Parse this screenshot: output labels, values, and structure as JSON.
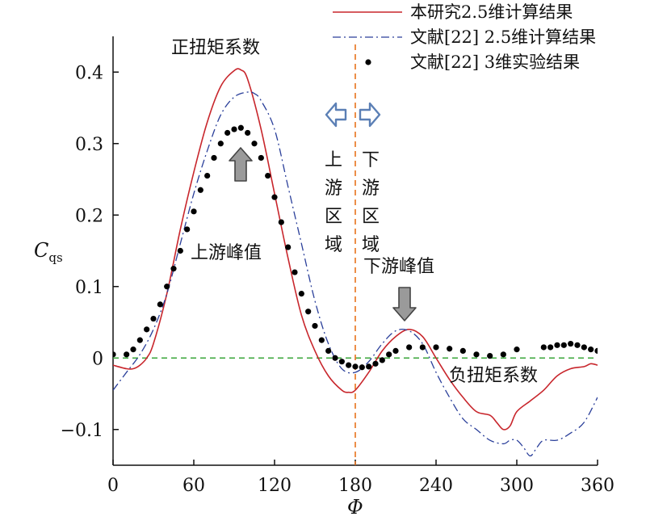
{
  "chart_data": {
    "type": "line",
    "xlabel": "Φ",
    "ylabel": "C",
    "ylabel_sub": "qs",
    "xlim": [
      0,
      360
    ],
    "ylim": [
      -0.15,
      0.45
    ],
    "xticks": [
      0,
      60,
      120,
      180,
      240,
      300,
      360
    ],
    "yticks": [
      -0.1,
      0,
      0.1,
      0.2,
      0.3,
      0.4
    ],
    "xtick_labels": [
      "0",
      "60",
      "120",
      "180",
      "240",
      "300",
      "360"
    ],
    "ytick_labels": [
      "−0.1",
      "0",
      "0.1",
      "0.2",
      "0.3",
      "0.4"
    ],
    "grid": false,
    "legend_position": "top-right",
    "colors": {
      "red": "#c8262c",
      "blue": "#2a3f9a",
      "dots": "#000000",
      "zero": "#3aa63a",
      "divider": "#e8731c",
      "arrow_blue": "#5b7fb5",
      "arrow_gray": "#9a9a9a"
    },
    "series": [
      {
        "name": "本研究2.5维计算结果",
        "style": "solid-red",
        "x": [
          0,
          10,
          15,
          20,
          25,
          30,
          40,
          50,
          60,
          70,
          80,
          90,
          95,
          100,
          110,
          120,
          130,
          140,
          150,
          160,
          170,
          175,
          180,
          190,
          200,
          210,
          220,
          230,
          240,
          250,
          260,
          270,
          280,
          285,
          290,
          295,
          300,
          310,
          320,
          330,
          340,
          350,
          355,
          360
        ],
        "y": [
          -0.01,
          -0.015,
          -0.015,
          -0.01,
          0.0,
          0.02,
          0.09,
          0.18,
          0.26,
          0.33,
          0.38,
          0.402,
          0.403,
          0.39,
          0.32,
          0.23,
          0.14,
          0.06,
          0.01,
          -0.025,
          -0.045,
          -0.048,
          -0.045,
          -0.02,
          0.01,
          0.03,
          0.04,
          0.03,
          0.0,
          -0.03,
          -0.055,
          -0.075,
          -0.08,
          -0.09,
          -0.1,
          -0.095,
          -0.075,
          -0.06,
          -0.045,
          -0.025,
          -0.015,
          -0.012,
          -0.008,
          -0.01
        ]
      },
      {
        "name": "文献[22] 2.5维计算结果",
        "style": "dashdot-blue",
        "x": [
          0,
          10,
          20,
          30,
          40,
          50,
          60,
          70,
          80,
          90,
          100,
          105,
          110,
          120,
          130,
          140,
          150,
          160,
          170,
          180,
          190,
          200,
          210,
          220,
          230,
          240,
          250,
          260,
          270,
          280,
          290,
          295,
          300,
          305,
          310,
          315,
          320,
          330,
          340,
          350,
          360
        ],
        "y": [
          -0.045,
          -0.02,
          0.005,
          0.04,
          0.09,
          0.16,
          0.23,
          0.29,
          0.34,
          0.365,
          0.372,
          0.37,
          0.36,
          0.32,
          0.24,
          0.16,
          0.08,
          0.02,
          -0.015,
          -0.02,
          -0.005,
          0.02,
          0.038,
          0.038,
          0.02,
          -0.02,
          -0.055,
          -0.085,
          -0.1,
          -0.115,
          -0.12,
          -0.115,
          -0.115,
          -0.125,
          -0.137,
          -0.125,
          -0.115,
          -0.115,
          -0.105,
          -0.09,
          -0.055
        ]
      },
      {
        "name": "文献[22] 3维实验结果",
        "style": "dots-black",
        "x": [
          0,
          10,
          15,
          20,
          25,
          30,
          35,
          40,
          45,
          50,
          55,
          60,
          65,
          70,
          75,
          80,
          85,
          90,
          95,
          100,
          105,
          110,
          115,
          120,
          125,
          130,
          135,
          140,
          145,
          150,
          155,
          160,
          165,
          170,
          175,
          180,
          185,
          190,
          195,
          200,
          205,
          210,
          220,
          230,
          240,
          250,
          260,
          270,
          280,
          290,
          300,
          320,
          325,
          330,
          335,
          340,
          345,
          350,
          355,
          360
        ],
        "y": [
          0.005,
          0.005,
          0.012,
          0.025,
          0.04,
          0.055,
          0.075,
          0.1,
          0.125,
          0.15,
          0.18,
          0.205,
          0.235,
          0.255,
          0.28,
          0.3,
          0.315,
          0.32,
          0.322,
          0.315,
          0.3,
          0.28,
          0.255,
          0.225,
          0.19,
          0.155,
          0.12,
          0.09,
          0.065,
          0.045,
          0.025,
          0.01,
          0.0,
          -0.005,
          -0.01,
          -0.012,
          -0.013,
          -0.012,
          -0.008,
          -0.003,
          0.005,
          0.01,
          0.015,
          0.015,
          0.015,
          0.013,
          0.01,
          0.005,
          0.003,
          0.005,
          0.012,
          0.015,
          0.015,
          0.018,
          0.018,
          0.02,
          0.018,
          0.015,
          0.012,
          0.01
        ]
      }
    ],
    "annotations": {
      "positive_torque": "正扭矩系数",
      "upstream_peak": "上游峰值",
      "upstream_region": [
        "上",
        "游",
        "区",
        "域"
      ],
      "downstream_region": [
        "下",
        "游",
        "区",
        "域"
      ],
      "downstream_peak": "下游峰值",
      "negative_torque": "负扭矩系数"
    },
    "zero_line_y": 0,
    "divider_x": 180
  }
}
